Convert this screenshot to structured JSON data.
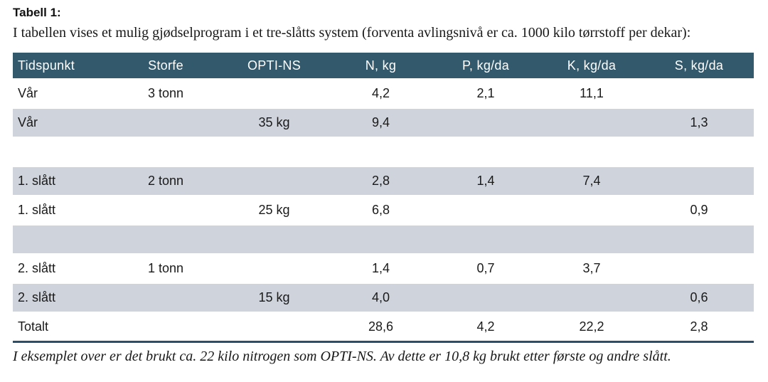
{
  "page": {
    "title": "Tabell 1:",
    "subtitle": "I tabellen vises et mulig gjødselprogram i et tre-slåtts system (forventa avlingsnivå er ca. 1000 kilo tørrstoff per dekar):",
    "footnote": "I eksemplet over er det brukt ca. 22 kilo nitrogen som OPTI-NS. Av dette er 10,8 kg brukt etter første og andre slått."
  },
  "colors": {
    "header_bg": "#33596c",
    "header_text": "#ffffff",
    "row_alt_bg": "#ced3dc",
    "bottom_rule": "#2b4f6b",
    "body_text": "#1a1a1a"
  },
  "table": {
    "columns": [
      "Tidspunkt",
      "Storfe",
      "OPTI-NS",
      "N, kg",
      "P, kg/da",
      "K, kg/da",
      "S, kg/da"
    ],
    "rows": [
      [
        "Vår",
        "3 tonn",
        "",
        "4,2",
        "2,1",
        "11,1",
        ""
      ],
      [
        "Vår",
        "",
        "35 kg",
        "9,4",
        "",
        "",
        "1,3"
      ],
      [
        "",
        "",
        "",
        "",
        "",
        "",
        ""
      ],
      [
        "1. slått",
        "2 tonn",
        "",
        "2,8",
        "1,4",
        "7,4",
        ""
      ],
      [
        "1. slått",
        "",
        "25 kg",
        "6,8",
        "",
        "",
        "0,9"
      ],
      [
        "",
        "",
        "",
        "",
        "",
        "",
        ""
      ],
      [
        "2. slått",
        "1 tonn",
        "",
        "1,4",
        "0,7",
        "3,7",
        ""
      ],
      [
        "2. slått",
        "",
        "15 kg",
        "4,0",
        "",
        "",
        "0,6"
      ],
      [
        "Totalt",
        "",
        "",
        "28,6",
        "4,2",
        "22,2",
        "2,8"
      ]
    ]
  }
}
